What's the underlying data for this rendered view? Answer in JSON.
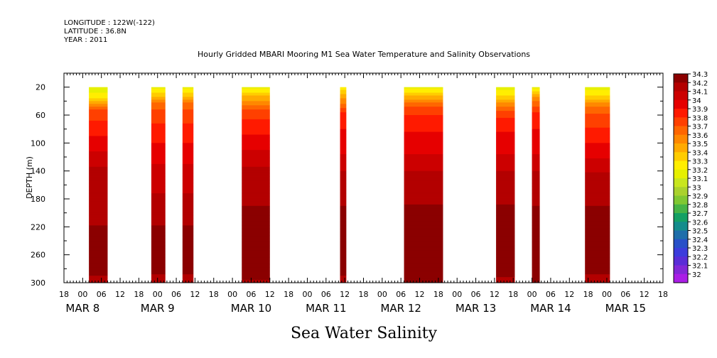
{
  "header": {
    "longitude": "LONGITUDE : 122W(-122)",
    "latitude": "LATITUDE : 36.8N",
    "year": "YEAR : 2011"
  },
  "chart_data": {
    "type": "heatmap",
    "title": "Hourly Gridded MBARI Mooring M1 Sea Water Temperature and Salinity Observations",
    "subtitle": "Sea Water Salinity",
    "ylabel": "DEPTH (m)",
    "xlabel": "",
    "y_axis": {
      "range": [
        300,
        0
      ],
      "ticks": [
        20,
        60,
        100,
        140,
        180,
        220,
        260,
        300
      ],
      "inverted": true
    },
    "x_axis": {
      "start_hours_from_mar8_00": -6,
      "end_hours_from_mar8_00": 186,
      "hour_labels": [
        "18",
        "00",
        "06",
        "12",
        "18",
        "00",
        "06",
        "12",
        "18",
        "00",
        "06",
        "12",
        "18",
        "00",
        "06",
        "12",
        "18",
        "00",
        "06",
        "12",
        "18",
        "00",
        "06",
        "12",
        "18",
        "00",
        "06",
        "12",
        "18",
        "00",
        "06",
        "12",
        "18"
      ],
      "date_labels": [
        {
          "text": "MAR  8",
          "hour": 0
        },
        {
          "text": "MAR  9",
          "hour": 24
        },
        {
          "text": "MAR 10",
          "hour": 54
        },
        {
          "text": "MAR 11",
          "hour": 78
        },
        {
          "text": "MAR 12",
          "hour": 102
        },
        {
          "text": "MAR 13",
          "hour": 126
        },
        {
          "text": "MAR 14",
          "hour": 150
        },
        {
          "text": "MAR 15",
          "hour": 174
        }
      ]
    },
    "data_blocks": [
      {
        "start_hour": 2,
        "end_hour": 8,
        "profile": [
          [
            20,
            33.2
          ],
          [
            35,
            33.3
          ],
          [
            45,
            33.6
          ],
          [
            55,
            33.8
          ],
          [
            80,
            33.9
          ],
          [
            100,
            34.0
          ],
          [
            125,
            34.1
          ],
          [
            145,
            34.2
          ],
          [
            200,
            34.2
          ],
          [
            235,
            34.3
          ],
          [
            280,
            34.3
          ],
          [
            300,
            34.2
          ]
        ]
      },
      {
        "start_hour": 22,
        "end_hour": 26.5,
        "profile": [
          [
            20,
            33.2
          ],
          [
            32,
            33.4
          ],
          [
            45,
            33.7
          ],
          [
            60,
            33.8
          ],
          [
            85,
            33.9
          ],
          [
            115,
            34.0
          ],
          [
            145,
            34.1
          ],
          [
            200,
            34.2
          ],
          [
            235,
            34.3
          ],
          [
            275,
            34.3
          ],
          [
            300,
            34.2
          ]
        ]
      },
      {
        "start_hour": 32,
        "end_hour": 35.5,
        "profile": [
          [
            20,
            33.2
          ],
          [
            32,
            33.4
          ],
          [
            45,
            33.7
          ],
          [
            60,
            33.8
          ],
          [
            85,
            33.9
          ],
          [
            115,
            34.0
          ],
          [
            145,
            34.1
          ],
          [
            200,
            34.2
          ],
          [
            235,
            34.3
          ],
          [
            275,
            34.3
          ],
          [
            300,
            34.2
          ]
        ]
      },
      {
        "start_hour": 51,
        "end_hour": 60,
        "profile": [
          [
            20,
            33.2
          ],
          [
            30,
            33.4
          ],
          [
            42,
            33.6
          ],
          [
            55,
            33.8
          ],
          [
            75,
            33.9
          ],
          [
            100,
            34.0
          ],
          [
            120,
            34.1
          ],
          [
            150,
            34.2
          ],
          [
            230,
            34.3
          ],
          [
            290,
            34.3
          ],
          [
            300,
            34.2
          ]
        ]
      },
      {
        "start_hour": 82.5,
        "end_hour": 84.5,
        "profile": [
          [
            20,
            33.3
          ],
          [
            40,
            33.6
          ],
          [
            60,
            33.9
          ],
          [
            100,
            34.0
          ],
          [
            130,
            34.1
          ],
          [
            150,
            34.2
          ],
          [
            230,
            34.3
          ],
          [
            280,
            34.3
          ],
          [
            300,
            34.2
          ]
        ]
      },
      {
        "start_hour": 103,
        "end_hour": 115.5,
        "profile": [
          [
            20,
            33.2
          ],
          [
            30,
            33.4
          ],
          [
            40,
            33.6
          ],
          [
            50,
            33.8
          ],
          [
            70,
            33.9
          ],
          [
            100,
            34.0
          ],
          [
            130,
            34.1
          ],
          [
            150,
            34.2
          ],
          [
            225,
            34.3
          ],
          [
            300,
            34.3
          ]
        ]
      },
      {
        "start_hour": 132.5,
        "end_hour": 138.5,
        "profile": [
          [
            20,
            33.2
          ],
          [
            35,
            33.4
          ],
          [
            50,
            33.7
          ],
          [
            70,
            33.9
          ],
          [
            100,
            34.0
          ],
          [
            130,
            34.1
          ],
          [
            150,
            34.2
          ],
          [
            225,
            34.3
          ],
          [
            285,
            34.3
          ],
          [
            300,
            34.2
          ]
        ]
      },
      {
        "start_hour": 144,
        "end_hour": 146.5,
        "profile": [
          [
            20,
            33.2
          ],
          [
            35,
            33.6
          ],
          [
            60,
            33.9
          ],
          [
            100,
            34.0
          ],
          [
            130,
            34.1
          ],
          [
            150,
            34.2
          ],
          [
            230,
            34.3
          ],
          [
            300,
            34.3
          ]
        ]
      },
      {
        "start_hour": 161,
        "end_hour": 169,
        "profile": [
          [
            20,
            33.2
          ],
          [
            35,
            33.4
          ],
          [
            50,
            33.7
          ],
          [
            65,
            33.8
          ],
          [
            90,
            33.9
          ],
          [
            110,
            34.0
          ],
          [
            135,
            34.1
          ],
          [
            150,
            34.2
          ],
          [
            230,
            34.3
          ],
          [
            275,
            34.3
          ],
          [
            300,
            34.2
          ]
        ]
      }
    ],
    "colorbar": {
      "labels": [
        "34.3",
        "34.2",
        "34.1",
        "34",
        "33.9",
        "33.8",
        "33.7",
        "33.6",
        "33.5",
        "33.4",
        "33.3",
        "33.2",
        "33.1",
        "33",
        "32.9",
        "32.8",
        "32.7",
        "32.6",
        "32.5",
        "32.4",
        "32.3",
        "32.2",
        "32.1",
        "32"
      ],
      "colors": [
        "#8b0000",
        "#b30000",
        "#cc0000",
        "#e60000",
        "#ff1a00",
        "#ff4000",
        "#ff6600",
        "#ff8800",
        "#ffaa00",
        "#ffcc00",
        "#ffee00",
        "#e6f000",
        "#c8e61e",
        "#aad22d",
        "#80c832",
        "#46b446",
        "#14a064",
        "#148c8c",
        "#1e6eaa",
        "#2850c8",
        "#3c3cdc",
        "#5a2dd7",
        "#8228d7",
        "#aa1ee6"
      ]
    }
  }
}
